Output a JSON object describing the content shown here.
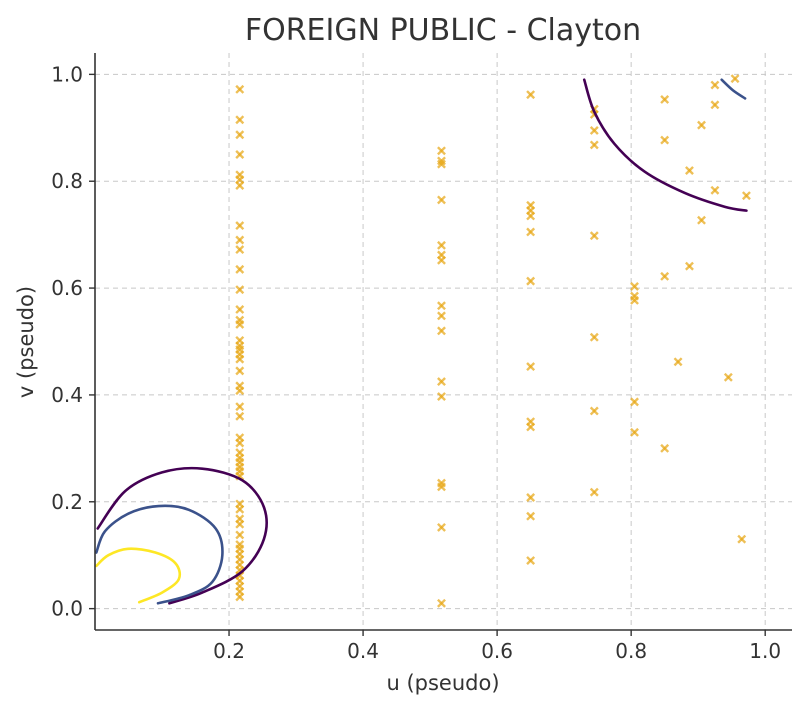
{
  "chart_data": {
    "type": "scatter",
    "title": "FOREIGN PUBLIC - Clayton",
    "xlabel": "u (pseudo)",
    "ylabel": "v (pseudo)",
    "xlim": [
      0.0,
      1.04
    ],
    "ylim": [
      -0.04,
      1.04
    ],
    "xticks": [
      0.2,
      0.4,
      0.6,
      0.8,
      1.0
    ],
    "yticks": [
      0.0,
      0.2,
      0.4,
      0.6,
      0.8,
      1.0
    ],
    "xtick_labels": [
      "0.2",
      "0.4",
      "0.6",
      "0.8",
      "1.0"
    ],
    "ytick_labels": [
      "0.0",
      "0.2",
      "0.4",
      "0.6",
      "0.8",
      "1.0"
    ],
    "grid": true,
    "marker_color": "#e8a817",
    "points": [
      {
        "u": 0.216,
        "v": [
          0.972,
          0.915,
          0.887,
          0.85,
          0.812,
          0.803,
          0.792,
          0.717,
          0.69,
          0.672,
          0.635,
          0.597,
          0.56,
          0.54,
          0.532,
          0.502,
          0.492,
          0.485,
          0.476,
          0.467,
          0.445,
          0.417,
          0.408,
          0.378,
          0.36,
          0.32,
          0.31,
          0.292,
          0.282,
          0.274,
          0.265,
          0.257,
          0.248,
          0.196,
          0.186,
          0.168,
          0.158,
          0.138,
          0.12,
          0.112,
          0.102,
          0.092,
          0.082,
          0.072,
          0.062,
          0.052,
          0.042,
          0.032,
          0.022
        ]
      },
      {
        "u": 0.517,
        "v": [
          0.857,
          0.838,
          0.832,
          0.765,
          0.68,
          0.662,
          0.652,
          0.567,
          0.548,
          0.52,
          0.425,
          0.397,
          0.235,
          0.228,
          0.152,
          0.01
        ]
      },
      {
        "u": 0.65,
        "v": [
          0.962,
          0.755,
          0.745,
          0.735,
          0.705,
          0.613,
          0.453,
          0.35,
          0.34,
          0.208,
          0.173,
          0.09
        ]
      },
      {
        "u": 0.745,
        "v": [
          0.935,
          0.925,
          0.895,
          0.868,
          0.698,
          0.508,
          0.37,
          0.218
        ]
      },
      {
        "u": 0.805,
        "v": [
          0.603,
          0.585,
          0.577,
          0.387,
          0.33
        ]
      },
      {
        "u": 0.85,
        "v": [
          0.953,
          0.877,
          0.622,
          0.3
        ]
      },
      {
        "u": 0.87,
        "v": [
          0.462
        ]
      },
      {
        "u": 0.887,
        "v": [
          0.82,
          0.641
        ]
      },
      {
        "u": 0.905,
        "v": [
          0.905,
          0.727
        ]
      },
      {
        "u": 0.925,
        "v": [
          0.98,
          0.943,
          0.783
        ]
      },
      {
        "u": 0.945,
        "v": [
          0.433
        ]
      },
      {
        "u": 0.955,
        "v": [
          0.992
        ]
      },
      {
        "u": 0.965,
        "v": [
          0.13
        ]
      },
      {
        "u": 0.972,
        "v": [
          0.773
        ]
      }
    ],
    "contours": [
      {
        "color": "#440154",
        "u": [
          0.111,
          0.16,
          0.22,
          0.252,
          0.252,
          0.22,
          0.16,
          0.1,
          0.045,
          0.004
        ],
        "v": [
          0.01,
          0.03,
          0.07,
          0.13,
          0.19,
          0.24,
          0.262,
          0.255,
          0.22,
          0.15
        ]
      },
      {
        "color": "#440154",
        "u": [
          0.73,
          0.745,
          0.775,
          0.82,
          0.88,
          0.94,
          0.972
        ],
        "v": [
          0.99,
          0.93,
          0.87,
          0.818,
          0.778,
          0.752,
          0.745
        ]
      },
      {
        "color": "#3b528b",
        "u": [
          0.094,
          0.14,
          0.175,
          0.19,
          0.18,
          0.14,
          0.095,
          0.05,
          0.015,
          0.002
        ],
        "v": [
          0.01,
          0.025,
          0.05,
          0.1,
          0.15,
          0.185,
          0.192,
          0.178,
          0.145,
          0.105
        ]
      },
      {
        "color": "#3b528b",
        "u": [
          0.935,
          0.952,
          0.97
        ],
        "v": [
          0.99,
          0.97,
          0.955
        ]
      },
      {
        "color": "#fde725",
        "u": [
          0.066,
          0.1,
          0.125,
          0.12,
          0.09,
          0.05,
          0.02,
          0.002
        ],
        "v": [
          0.012,
          0.03,
          0.055,
          0.085,
          0.105,
          0.112,
          0.1,
          0.08
        ]
      }
    ]
  }
}
